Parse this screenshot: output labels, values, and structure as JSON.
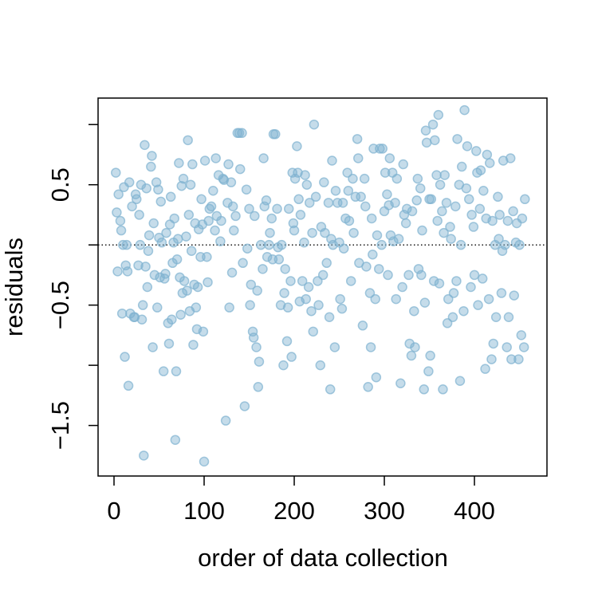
{
  "chart_data": {
    "type": "scatter",
    "x_label": "order of data collection",
    "y_label": "residuals",
    "color": "#7fb2d0",
    "xlim": [
      -17.7,
      480.5
    ],
    "ylim": [
      -1.92,
      1.22
    ],
    "xticks": [
      0,
      100,
      200,
      300,
      400
    ],
    "yticks": [
      {
        "value": -1.5,
        "label": "−1.5"
      },
      {
        "value": -0.5,
        "label": "−0.5"
      },
      0.5
    ],
    "yminor_ticks": [
      -1,
      0,
      1
    ],
    "hline": 0,
    "x": [
      2,
      3,
      4,
      5,
      7,
      8,
      9,
      10,
      11,
      12,
      13,
      14,
      15,
      16,
      17,
      18,
      20,
      22,
      23,
      24,
      25,
      27,
      28,
      29,
      30,
      31,
      32,
      33,
      34,
      35,
      36,
      37,
      38,
      39,
      41,
      42,
      43,
      44,
      45,
      47,
      48,
      49,
      50,
      51,
      52,
      53,
      55,
      56,
      57,
      58,
      60,
      61,
      62,
      63,
      64,
      65,
      66,
      67,
      68,
      69,
      70,
      71,
      72,
      73,
      74,
      75,
      76,
      77,
      78,
      80,
      81,
      82,
      83,
      84,
      85,
      86,
      87,
      88,
      89,
      90,
      91,
      92,
      93,
      94,
      96,
      97,
      98,
      99,
      100,
      101,
      103,
      104,
      105,
      106,
      108,
      110,
      112,
      113,
      114,
      116,
      118,
      119,
      121,
      122,
      124,
      126,
      127,
      128,
      130,
      131,
      132,
      133,
      135,
      137,
      139,
      140,
      142,
      143,
      145,
      147,
      148,
      150,
      151,
      152,
      154,
      155,
      156,
      158,
      159,
      160,
      161,
      163,
      165,
      166,
      167,
      169,
      170,
      172,
      173,
      175,
      176,
      177,
      179,
      181,
      182,
      183,
      185,
      186,
      188,
      189,
      190,
      192,
      193,
      194,
      196,
      197,
      198,
      199,
      200,
      201,
      203,
      204,
      205,
      206,
      207,
      209,
      211,
      212,
      213,
      214,
      216,
      217,
      219,
      220,
      221,
      222,
      224,
      226,
      227,
      229,
      230,
      232,
      233,
      234,
      236,
      238,
      239,
      240,
      241,
      242,
      243,
      245,
      246,
      248,
      250,
      251,
      253,
      254,
      255,
      257,
      259,
      260,
      261,
      263,
      265,
      266,
      268,
      270,
      271,
      272,
      274,
      276,
      278,
      279,
      280,
      282,
      284,
      285,
      286,
      287,
      288,
      290,
      291,
      292,
      294,
      295,
      297,
      298,
      300,
      301,
      303,
      304,
      305,
      306,
      307,
      309,
      310,
      312,
      313,
      314,
      316,
      318,
      320,
      321,
      322,
      324,
      325,
      327,
      328,
      330,
      331,
      333,
      334,
      336,
      337,
      338,
      340,
      341,
      342,
      344,
      345,
      346,
      347,
      349,
      350,
      351,
      352,
      354,
      355,
      356,
      358,
      359,
      360,
      361,
      362,
      364,
      365,
      366,
      367,
      369,
      370,
      371,
      373,
      374,
      376,
      377,
      379,
      380,
      381,
      383,
      384,
      385,
      386,
      388,
      389,
      391,
      392,
      394,
      396,
      397,
      399,
      400,
      402,
      403,
      404,
      406,
      407,
      409,
      410,
      412,
      413,
      414,
      416,
      417,
      419,
      420,
      421,
      423,
      424,
      426,
      427,
      428,
      430,
      431,
      432,
      434,
      436,
      437,
      438,
      440,
      441,
      443,
      444,
      446,
      447,
      449,
      450,
      452,
      453,
      455,
      456
    ],
    "values": [
      0.6,
      0.27,
      -0.22,
      0.42,
      0.2,
      0.12,
      -0.57,
      0.0,
      0.48,
      -0.93,
      -0.17,
      0.0,
      -0.22,
      -1.17,
      0.52,
      -0.57,
      0.32,
      -0.6,
      -0.6,
      0.42,
      0.38,
      -0.17,
      0.25,
      0.0,
      0.5,
      -0.62,
      -0.5,
      -1.75,
      0.83,
      -0.18,
      0.47,
      -0.35,
      -0.05,
      0.08,
      0.65,
      0.74,
      -0.85,
      0.18,
      -0.25,
      0.52,
      -0.52,
      0.46,
      0.06,
      -0.27,
      0.36,
      0.02,
      -1.05,
      -0.28,
      -0.24,
      0.1,
      -0.65,
      -0.82,
      0.17,
      0.4,
      -0.62,
      -0.15,
      0.02,
      0.22,
      -1.62,
      -1.05,
      -0.12,
      0.05,
      0.68,
      -0.27,
      -0.58,
      0.49,
      -0.4,
      0.55,
      -0.3,
      0.07,
      -0.38,
      0.87,
      0.25,
      -0.55,
      0.5,
      -0.05,
      0.67,
      -0.83,
      -0.33,
      0.18,
      -0.52,
      -0.7,
      -0.35,
      0.13,
      -0.1,
      0.38,
      0.17,
      -0.72,
      -1.8,
      0.7,
      -0.1,
      -0.31,
      0.2,
      0.3,
      0.32,
      0.45,
      0.12,
      0.72,
      0.24,
      0.58,
      0.03,
      0.2,
      0.55,
      0.54,
      -1.46,
      0.35,
      0.67,
      -0.52,
      0.52,
      -0.23,
      0.32,
      0.12,
      0.24,
      0.93,
      0.93,
      0.63,
      0.93,
      -0.15,
      -1.34,
      0.46,
      -0.03,
      0.3,
      -0.5,
      -0.33,
      -0.72,
      -0.77,
      0.24,
      -0.85,
      -0.38,
      -1.18,
      -0.97,
      0.0,
      -0.2,
      0.72,
      0.32,
      0.37,
      -0.1,
      0.0,
      0.1,
      0.22,
      -0.12,
      0.92,
      0.92,
      0.3,
      -0.02,
      -0.12,
      -0.5,
      0.0,
      -1.0,
      -0.4,
      -0.2,
      -0.8,
      -0.52,
      0.3,
      -0.3,
      -0.93,
      0.6,
      0.18,
      0.12,
      0.55,
      0.82,
      0.6,
      0.38,
      -0.47,
      0.25,
      -0.3,
      0.02,
      0.58,
      -0.45,
      0.5,
      -0.35,
      0.35,
      -0.55,
      0.1,
      -0.72,
      1.0,
      0.4,
      -0.3,
      -0.5,
      -1.0,
      0.15,
      -0.25,
      0.52,
      0.1,
      -0.15,
      0.35,
      -0.6,
      -1.2,
      0.05,
      0.7,
      0.0,
      -0.85,
      0.45,
      0.35,
      0.02,
      -0.45,
      -0.53,
      0.35,
      -0.03,
      0.22,
      0.6,
      0.45,
      0.2,
      -0.3,
      0.55,
      0.1,
      0.4,
      0.88,
      0.72,
      -0.15,
      0.4,
      -0.67,
      0.55,
      0.32,
      -0.18,
      -1.18,
      -0.4,
      -0.85,
      0.22,
      -0.08,
      0.8,
      -0.45,
      -1.1,
      0.08,
      -0.2,
      0.8,
      0.0,
      0.8,
      0.28,
      0.6,
      0.42,
      -0.25,
      0.33,
      0.72,
      0.08,
      0.6,
      0.03,
      0.35,
      -0.45,
      0.55,
      0.05,
      -1.15,
      -0.35,
      0.67,
      0.25,
      0.18,
      0.3,
      -0.25,
      -0.82,
      -0.92,
      0.28,
      -0.55,
      -0.85,
      0.37,
      0.55,
      -0.2,
      0.47,
      -0.25,
      0.12,
      -1.2,
      -0.48,
      0.95,
      0.85,
      -1.05,
      0.38,
      -0.92,
      0.38,
      1.0,
      -0.3,
      0.87,
      0.58,
      0.2,
      1.08,
      -0.32,
      0.5,
      0.28,
      -1.2,
      0.1,
      0.58,
      0.35,
      -0.65,
      -0.45,
      0.15,
      0.05,
      -0.6,
      -0.4,
      0.32,
      -0.3,
      0.88,
      0.5,
      -1.13,
      0.0,
      0.65,
      -0.55,
      1.12,
      0.47,
      0.82,
      0.38,
      -0.35,
      0.25,
      0.15,
      -0.25,
      0.78,
      0.6,
      -0.5,
      0.3,
      0.62,
      -0.28,
      0.45,
      -1.03,
      0.22,
      0.75,
      -0.45,
      0.68,
      -0.95,
      0.2,
      -0.82,
      0.0,
      -0.6,
      0.4,
      0.05,
      0.25,
      -0.4,
      -0.05,
      0.7,
      0.0,
      -0.85,
      0.2,
      -0.6,
      0.72,
      -0.95,
      0.28,
      -0.42,
      0.02,
      0.18,
      -0.95,
      0.0,
      -0.75,
      0.22,
      -0.85,
      0.38
    ]
  }
}
